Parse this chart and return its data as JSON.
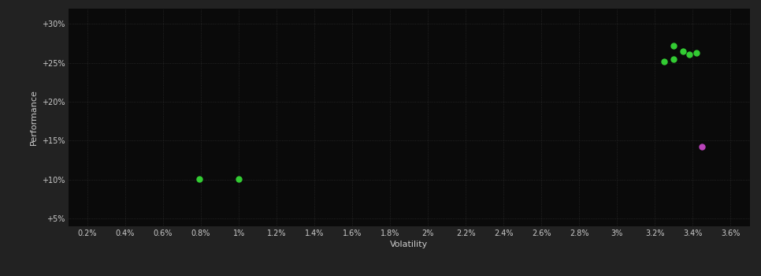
{
  "background_color": "#222222",
  "plot_bg_color": "#0a0a0a",
  "grid_color": "#444444",
  "text_color": "#cccccc",
  "xlabel": "Volatility",
  "ylabel": "Performance",
  "xlim": [
    0.001,
    0.037
  ],
  "ylim": [
    0.04,
    0.32
  ],
  "xticks": [
    0.002,
    0.004,
    0.006,
    0.008,
    0.01,
    0.012,
    0.014,
    0.016,
    0.018,
    0.02,
    0.022,
    0.024,
    0.026,
    0.028,
    0.03,
    0.032,
    0.034,
    0.036
  ],
  "xtick_labels": [
    "0.2%",
    "0.4%",
    "0.6%",
    "0.8%",
    "1%",
    "1.2%",
    "1.4%",
    "1.6%",
    "1.8%",
    "2%",
    "2.2%",
    "2.4%",
    "2.6%",
    "2.8%",
    "3%",
    "3.2%",
    "3.4%",
    "3.6%"
  ],
  "yticks": [
    0.05,
    0.1,
    0.15,
    0.2,
    0.25,
    0.3
  ],
  "ytick_labels": [
    "+5%",
    "+10%",
    "+15%",
    "+20%",
    "+25%",
    "+30%"
  ],
  "green_points": [
    [
      0.0079,
      0.101
    ],
    [
      0.01,
      0.101
    ],
    [
      0.033,
      0.272
    ],
    [
      0.0335,
      0.265
    ],
    [
      0.0338,
      0.261
    ],
    [
      0.033,
      0.255
    ],
    [
      0.0325,
      0.252
    ],
    [
      0.0342,
      0.263
    ]
  ],
  "purple_points": [
    [
      0.0345,
      0.142
    ]
  ],
  "green_color": "#33cc33",
  "purple_color": "#bb44bb",
  "marker_size": 5
}
